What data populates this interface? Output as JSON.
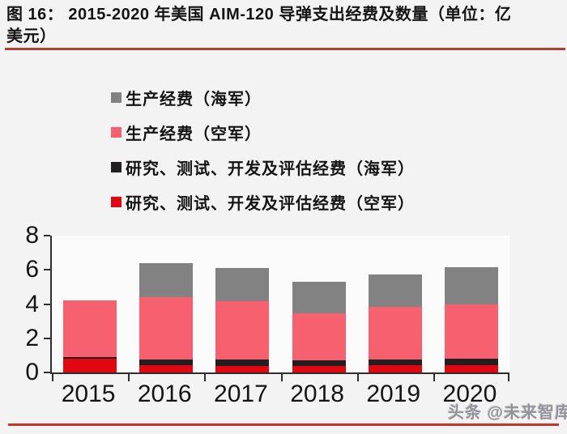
{
  "title": {
    "line1": "图 16：  2015-2020 年美国 AIM-120 导弹支出经费及数量（单位：亿",
    "line2": "美元）"
  },
  "legend": [
    {
      "label": "生产经费（海军）",
      "color": "#828282"
    },
    {
      "label": "生产经费（空军）",
      "color": "#f7606f"
    },
    {
      "label": "研究、测试、开发及评估经费（海军）",
      "color": "#231f20"
    },
    {
      "label": "研究、测试、开发及评估经费（空军）",
      "color": "#e00710"
    }
  ],
  "watermark": "头条 @未来智库",
  "accent_colors": {
    "title_rule": "#a84038",
    "bottom_rule": "#c2352c",
    "axis": "#2e2e2e"
  },
  "chart_data": {
    "type": "bar",
    "stacked": true,
    "title": "2015-2020 年美国 AIM-120 导弹支出经费及数量（单位：亿美元）",
    "xlabel": "",
    "ylabel": "",
    "categories": [
      "2015",
      "2016",
      "2017",
      "2018",
      "2019",
      "2020"
    ],
    "series": [
      {
        "name": "研究、测试、开发及评估经费（空军）",
        "color": "#e00710",
        "values": [
          0.8,
          0.45,
          0.4,
          0.4,
          0.45,
          0.45
        ]
      },
      {
        "name": "研究、测试、开发及评估经费（海军）",
        "color": "#231f20",
        "values": [
          0.1,
          0.3,
          0.35,
          0.3,
          0.3,
          0.35
        ]
      },
      {
        "name": "生产经费（空军）",
        "color": "#f7606f",
        "values": [
          3.3,
          3.65,
          3.4,
          2.75,
          3.1,
          3.2
        ]
      },
      {
        "name": "生产经费（海军）",
        "color": "#828282",
        "values": [
          0,
          2.0,
          1.95,
          1.85,
          1.9,
          2.15
        ]
      }
    ],
    "totals": [
      4.2,
      6.4,
      6.1,
      5.3,
      5.75,
      6.15
    ],
    "ylim": [
      0,
      8
    ],
    "yticks": [
      0,
      2,
      4,
      6,
      8
    ],
    "grid": false,
    "legend_position": "top-left"
  }
}
